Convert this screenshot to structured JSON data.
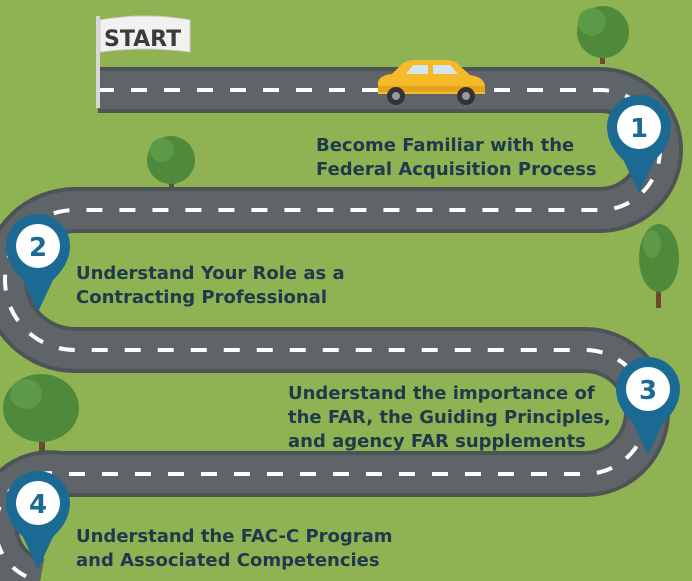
{
  "start_flag": {
    "label": "START"
  },
  "steps": [
    {
      "number": "1",
      "lines": [
        "Become Familiar with the",
        "Federal Acquisition Process"
      ]
    },
    {
      "number": "2",
      "lines": [
        "Understand Your Role as a",
        "Contracting Professional"
      ]
    },
    {
      "number": "3",
      "lines": [
        "Understand the importance of",
        "the FAR, the Guiding Principles,",
        "and agency FAR supplements"
      ]
    },
    {
      "number": "4",
      "lines": [
        "Understand the FAC-C Program",
        "and Associated Competencies"
      ]
    }
  ],
  "colors": {
    "background": "#8fb253",
    "road": "#5e6468",
    "road_edge": "#4d5357",
    "road_dash": "#ffffff",
    "pin": "#1b6a94",
    "text": "#1f3a4d",
    "car": "#f6b928",
    "tree_canopy": "#4f8a3c",
    "tree_trunk": "#6b4a2e"
  }
}
